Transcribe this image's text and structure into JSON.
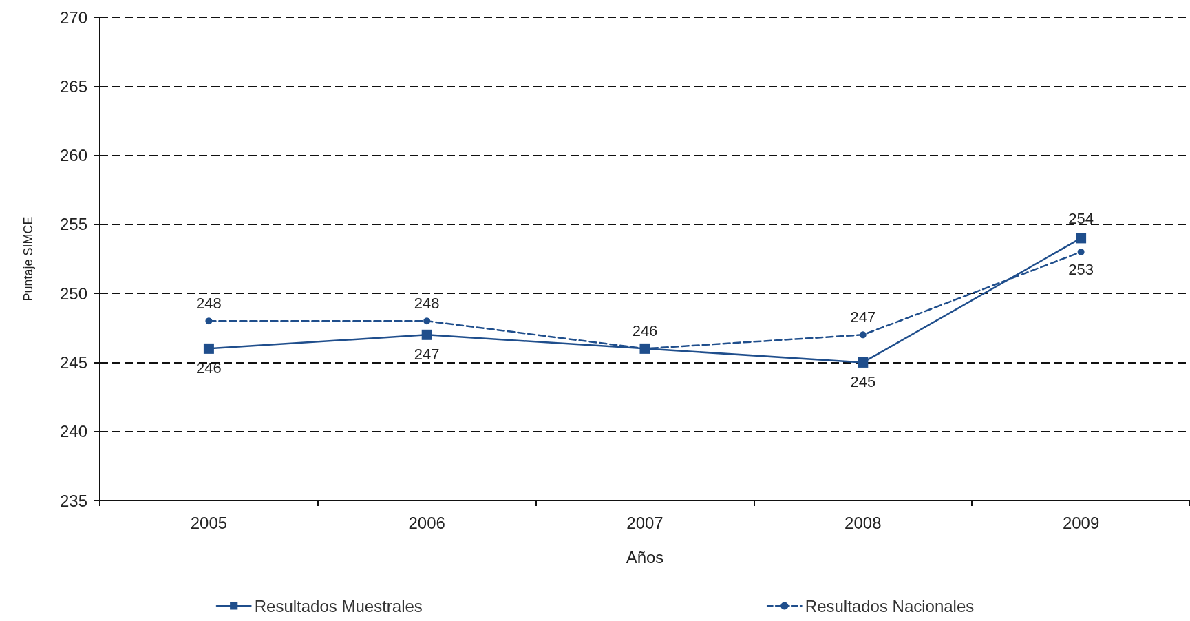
{
  "chart_data": {
    "type": "line",
    "xlabel": "Años",
    "ylabel": "Puntaje SIMCE",
    "categories": [
      "2005",
      "2006",
      "2007",
      "2008",
      "2009"
    ],
    "series": [
      {
        "name": "Resultados Muestrales",
        "color": "#1f4e8c",
        "marker": "square",
        "line_style": "solid",
        "values": [
          246,
          247,
          246,
          245,
          254
        ],
        "value_labels": [
          "246",
          "247",
          null,
          "245",
          "254"
        ]
      },
      {
        "name": "Resultados Nacionales",
        "color": "#1f4e8c",
        "marker": "circle",
        "line_style": "dashed",
        "values": [
          248,
          248,
          246,
          247,
          253
        ],
        "value_labels": [
          "248",
          "248",
          "246",
          "247",
          "253"
        ]
      }
    ],
    "ylim": [
      235,
      270
    ],
    "yticks": [
      235,
      240,
      245,
      250,
      255,
      260,
      265,
      270
    ],
    "grid": "y",
    "legend": "bottom"
  }
}
